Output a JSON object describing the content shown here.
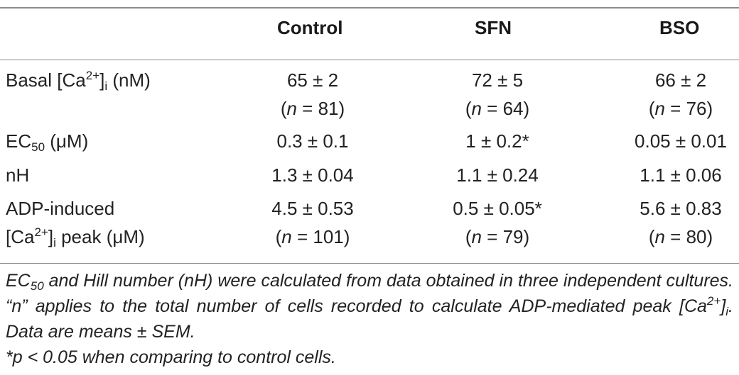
{
  "table": {
    "headers": [
      "",
      "Control",
      "SFN",
      "BSO"
    ],
    "rows": [
      {
        "label": {
          "pre": "Basal [Ca",
          "sup": "2+",
          "post1": "]",
          "sub": "i",
          "post2": " (nM)"
        },
        "values": [
          {
            "main": "65 ± 2",
            "n_open": "(",
            "n_italic": "n",
            "n_rest": " = 81)"
          },
          {
            "main": "72 ± 5",
            "n_open": "(",
            "n_italic": "n",
            "n_rest": " = 64)"
          },
          {
            "main": "66 ± 2",
            "n_open": "(",
            "n_italic": "n",
            "n_rest": " = 76)"
          }
        ]
      },
      {
        "label": {
          "pre": "EC",
          "sub": "50",
          "post": " (μM)"
        },
        "values": [
          {
            "main": "0.3 ± 0.1"
          },
          {
            "main": "1 ± 0.2*"
          },
          {
            "main": "0.05 ± 0.01"
          }
        ]
      },
      {
        "label": {
          "text": "nH"
        },
        "values": [
          {
            "main": "1.3 ± 0.04"
          },
          {
            "main": "1.1 ± 0.24"
          },
          {
            "main": "1.1 ± 0.06"
          }
        ]
      },
      {
        "label": {
          "line1": "ADP-induced",
          "pre": "[Ca",
          "sup": "2+",
          "post1": "]",
          "sub": "i",
          "post2": " peak (μM)"
        },
        "values": [
          {
            "main": "4.5 ± 0.53",
            "n_open": "(",
            "n_italic": "n",
            "n_rest": " = 101)"
          },
          {
            "main": "0.5 ± 0.05*",
            "n_open": "(",
            "n_italic": "n",
            "n_rest": " = 79)"
          },
          {
            "main": "5.6 ± 0.83",
            "n_open": "(",
            "n_italic": "n",
            "n_rest": " = 80)"
          }
        ]
      }
    ]
  },
  "footnotes": {
    "note_pre": "EC",
    "note_sub": "50",
    "note_mid": " and Hill number (nH) were calculated from data obtained in three independent cultures. “n” applies to the total number of cells recorded to calculate ADP-mediated peak [Ca",
    "note_sup": "2+",
    "note_close": "]",
    "note_sub2": "i",
    "note_end": ". Data are means ± SEM.",
    "significance": "*p < 0.05 when comparing to control cells."
  }
}
